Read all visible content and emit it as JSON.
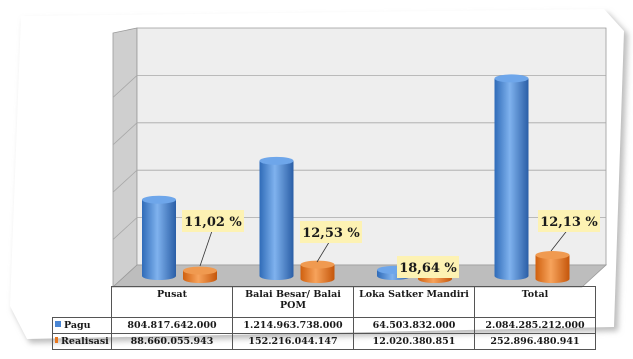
{
  "chart_data": {
    "type": "bar",
    "categories": [
      "Pusat",
      "Balai Besar/ Balai POM",
      "Loka Satker Mandiri",
      "Total"
    ],
    "series": [
      {
        "name": "Pagu",
        "values": [
          804817642000,
          1214963738000,
          64503832000,
          2084285212000
        ],
        "labels": [
          "804.817.642.000",
          "1.214.963.738.000",
          "64.503.832.000",
          "2.084.285.212.000"
        ]
      },
      {
        "name": "Realisasi",
        "values": [
          88660055943,
          152216044147,
          12020380851,
          252896480941
        ],
        "labels": [
          "88.660.055.943",
          "152.216.044.147",
          "12.020.380.851",
          "252.896.480.941"
        ]
      }
    ],
    "annotations": [
      "11,02 %",
      "12,53 %",
      "18,64 %",
      "12,13 %"
    ],
    "ylim": [
      0,
      2500000000000
    ],
    "grid": true,
    "legend": "table",
    "colors": {
      "pagu": "#4a86d4",
      "realisasi": "#e8771f",
      "callout": "#fdf2b3"
    }
  }
}
